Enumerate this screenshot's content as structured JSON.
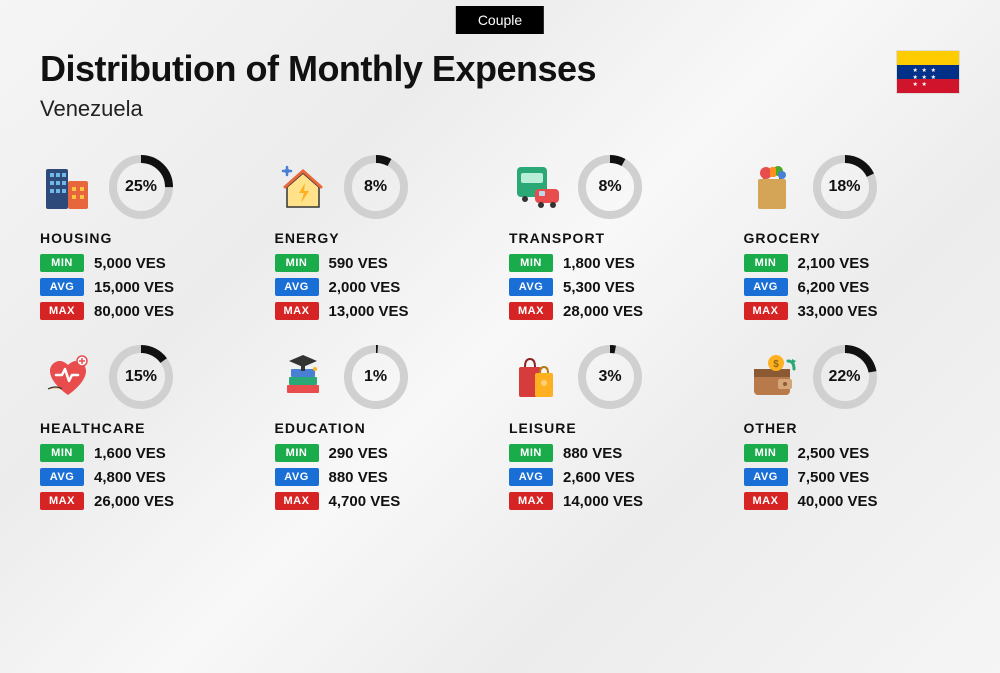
{
  "badge": "Couple",
  "title": "Distribution of Monthly Expenses",
  "subtitle": "Venezuela",
  "flag": {
    "top": "#ffcc00",
    "mid": "#003087",
    "bot": "#cf142b"
  },
  "currency": "VES",
  "labels": {
    "min": "MIN",
    "avg": "AVG",
    "max": "MAX"
  },
  "donut": {
    "radius": 28,
    "stroke_width": 8,
    "track_color": "#d0d0d0",
    "fill_color": "#111111"
  },
  "tag_colors": {
    "min": "#1aab4a",
    "avg": "#1a6fd6",
    "max": "#d62424"
  },
  "background_gradient": [
    "#f5f5f5",
    "#ececec",
    "#f8f8f8"
  ],
  "title_fontsize": 36,
  "subtitle_fontsize": 22,
  "category_fontsize": 14,
  "value_fontsize": 15,
  "categories": [
    {
      "key": "housing",
      "name": "HOUSING",
      "pct": 25,
      "min": "5,000",
      "avg": "15,000",
      "max": "80,000",
      "icon": "buildings-icon"
    },
    {
      "key": "energy",
      "name": "ENERGY",
      "pct": 8,
      "min": "590",
      "avg": "2,000",
      "max": "13,000",
      "icon": "energy-house-icon"
    },
    {
      "key": "transport",
      "name": "TRANSPORT",
      "pct": 8,
      "min": "1,800",
      "avg": "5,300",
      "max": "28,000",
      "icon": "bus-car-icon"
    },
    {
      "key": "grocery",
      "name": "GROCERY",
      "pct": 18,
      "min": "2,100",
      "avg": "6,200",
      "max": "33,000",
      "icon": "grocery-bag-icon"
    },
    {
      "key": "healthcare",
      "name": "HEALTHCARE",
      "pct": 15,
      "min": "1,600",
      "avg": "4,800",
      "max": "26,000",
      "icon": "healthcare-heart-icon"
    },
    {
      "key": "education",
      "name": "EDUCATION",
      "pct": 1,
      "min": "290",
      "avg": "880",
      "max": "4,700",
      "icon": "graduation-books-icon"
    },
    {
      "key": "leisure",
      "name": "LEISURE",
      "pct": 3,
      "min": "880",
      "avg": "2,600",
      "max": "14,000",
      "icon": "shopping-bags-icon"
    },
    {
      "key": "other",
      "name": "OTHER",
      "pct": 22,
      "min": "2,500",
      "avg": "7,500",
      "max": "40,000",
      "icon": "wallet-icon"
    }
  ]
}
